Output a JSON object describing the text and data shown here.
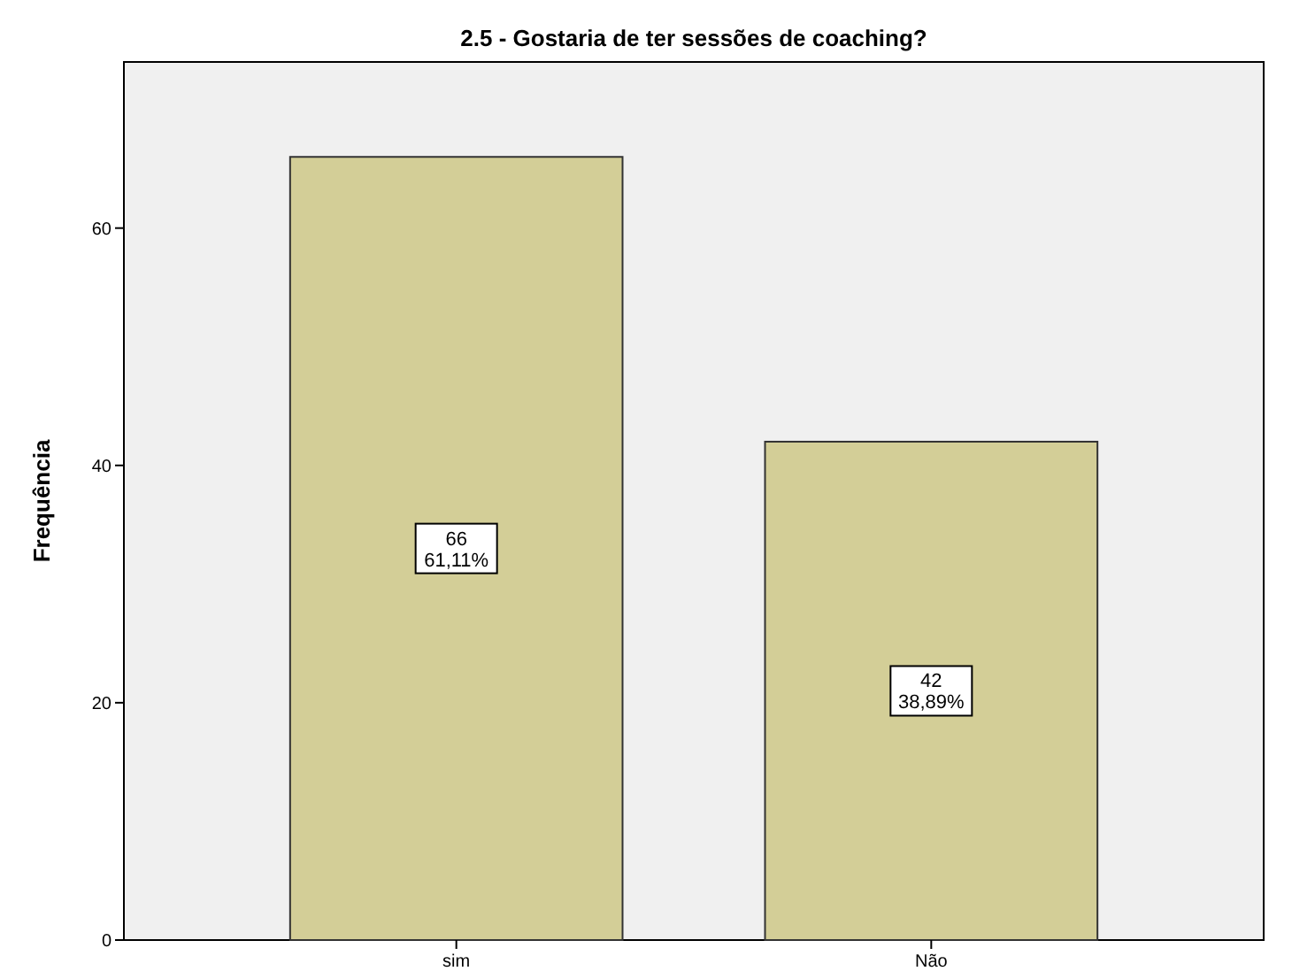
{
  "chart_data": {
    "type": "bar",
    "title": "2.5 - Gostaria de ter sessões de coaching?",
    "ylabel": "Frequência",
    "categories": [
      "sim",
      "Não"
    ],
    "values": [
      66,
      42
    ],
    "color": "#d3ce97",
    "value_labels": [
      "66\n61,11%",
      "42\n38,89%"
    ],
    "ylim": [
      0,
      74
    ],
    "yticks": [
      0,
      20,
      40,
      60
    ],
    "grid": false
  }
}
